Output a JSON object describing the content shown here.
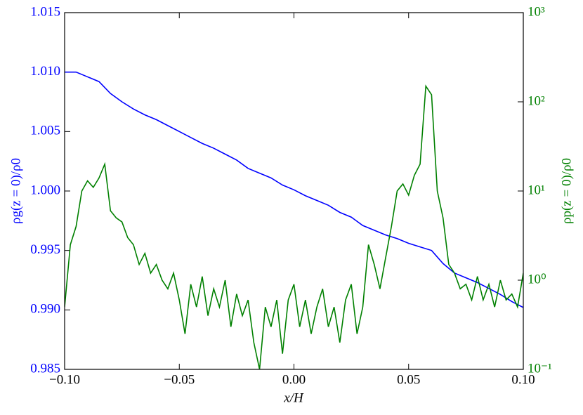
{
  "chart_data": {
    "type": "line",
    "xlabel": "x/H",
    "ylabel": "ρg(z = 0)/ρ0",
    "y2label": "ρp(z = 0)/ρ0",
    "xlim": [
      -0.1,
      0.1
    ],
    "ylim": [
      0.985,
      1.015
    ],
    "y2lim": [
      0.1,
      1000
    ],
    "y2scale": "log",
    "xticks": [
      {
        "value": -0.1,
        "label": "−0.10"
      },
      {
        "value": -0.05,
        "label": "−0.05"
      },
      {
        "value": 0,
        "label": "0.00"
      },
      {
        "value": 0.05,
        "label": "0.05"
      },
      {
        "value": 0.1,
        "label": "0.10"
      }
    ],
    "yticks": [
      0.985,
      {
        "value": 0.99,
        "label": "0.990"
      },
      0.995,
      {
        "value": 1,
        "label": "1.000"
      },
      1.005,
      {
        "value": 1.01,
        "label": "1.010"
      },
      1.015
    ],
    "y2ticks": [
      {
        "value": 0.1,
        "label": "10⁻¹"
      },
      {
        "value": 1,
        "label": "10⁰"
      },
      {
        "value": 10,
        "label": "10¹"
      },
      {
        "value": 100,
        "label": "10²"
      },
      {
        "value": 1000,
        "label": "10³"
      }
    ],
    "yaxis_color": "#0000ff",
    "y2axis_color": "#008000",
    "series": [
      {
        "color": "#0000ff",
        "x": [
          -0.1,
          -0.095,
          -0.09,
          -0.085,
          -0.08,
          -0.075,
          -0.07,
          -0.065,
          -0.06,
          -0.055,
          -0.05,
          -0.045,
          -0.04,
          -0.035,
          -0.03,
          -0.025,
          -0.02,
          -0.015,
          -0.01,
          -0.005,
          0,
          0.005,
          0.01,
          0.015,
          0.02,
          0.025,
          0.03,
          0.035,
          0.04,
          0.045,
          0.05,
          0.055,
          0.06,
          0.065,
          0.07,
          0.075,
          0.08,
          0.085,
          0.09,
          0.095,
          0.1
        ],
        "values": [
          1.01,
          1.01,
          1.0096,
          1.0092,
          1.0082,
          1.0075,
          1.0069,
          1.0064,
          1.006,
          1.0055,
          1.005,
          1.0045,
          1.004,
          1.0036,
          1.0031,
          1.0026,
          1.0019,
          1.0015,
          1.0011,
          1.0005,
          1.0001,
          0.9996,
          0.9992,
          0.9988,
          0.9982,
          0.9978,
          0.9971,
          0.9967,
          0.9963,
          0.996,
          0.9956,
          0.9953,
          0.995,
          0.9939,
          0.9931,
          0.9927,
          0.9923,
          0.9918,
          0.9913,
          0.9907,
          0.9902
        ]
      },
      {
        "color": "#008000",
        "axis": "y2",
        "x": [
          -0.1,
          -0.0975,
          -0.095,
          -0.0925,
          -0.09,
          -0.0875,
          -0.085,
          -0.0825,
          -0.08,
          -0.0775,
          -0.075,
          -0.0725,
          -0.07,
          -0.0675,
          -0.065,
          -0.0625,
          -0.06,
          -0.0575,
          -0.055,
          -0.0525,
          -0.05,
          -0.0475,
          -0.045,
          -0.0425,
          -0.04,
          -0.0375,
          -0.035,
          -0.0325,
          -0.03,
          -0.0275,
          -0.025,
          -0.0225,
          -0.02,
          -0.0175,
          -0.015,
          -0.0125,
          -0.01,
          -0.0075,
          -0.005,
          -0.0025,
          0,
          0.0025,
          0.005,
          0.0075,
          0.01,
          0.0125,
          0.015,
          0.0175,
          0.02,
          0.0225,
          0.025,
          0.0275,
          0.03,
          0.0325,
          0.035,
          0.0375,
          0.04,
          0.0425,
          0.045,
          0.0475,
          0.05,
          0.0525,
          0.055,
          0.0575,
          0.06,
          0.0625,
          0.065,
          0.0675,
          0.07,
          0.0725,
          0.075,
          0.0775,
          0.08,
          0.0825,
          0.085,
          0.0875,
          0.09,
          0.0925,
          0.095,
          0.0975,
          0.1
        ],
        "values": [
          0.5,
          2.5,
          4,
          10,
          13,
          11,
          14,
          20,
          6,
          5,
          4.5,
          3,
          2.5,
          1.5,
          2,
          1.2,
          1.5,
          1,
          0.8,
          1.2,
          0.6,
          0.25,
          0.9,
          0.5,
          1.1,
          0.4,
          0.8,
          0.5,
          1.0,
          0.3,
          0.7,
          0.4,
          0.6,
          0.2,
          0.1,
          0.5,
          0.3,
          0.6,
          0.15,
          0.6,
          0.9,
          0.3,
          0.6,
          0.25,
          0.5,
          0.8,
          0.3,
          0.5,
          0.2,
          0.6,
          0.9,
          0.25,
          0.5,
          2.5,
          1.5,
          0.8,
          1.8,
          4,
          10,
          12,
          9,
          15,
          20,
          150,
          120,
          10,
          5,
          1.5,
          1.2,
          0.8,
          0.9,
          0.6,
          1.1,
          0.6,
          0.9,
          0.5,
          1.0,
          0.6,
          0.7,
          0.5,
          1.2
        ]
      }
    ]
  }
}
